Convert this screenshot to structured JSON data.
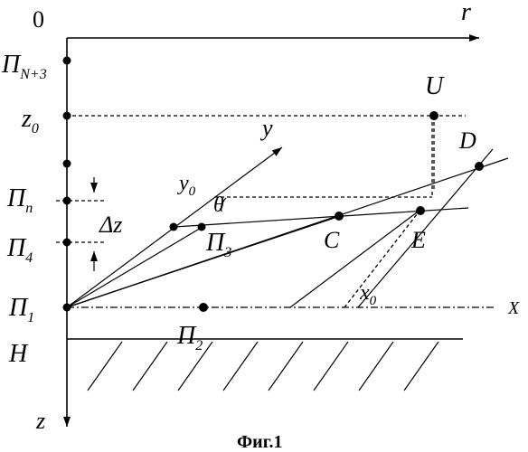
{
  "figure": {
    "caption": "Фиг.1",
    "labels": {
      "origin": "0",
      "r_axis": "r",
      "z_axis": "z",
      "y_axis": "y",
      "x_axis": "X",
      "y0_main": "y",
      "y0_sub": "0",
      "x0_main": "x",
      "x0_sub": "0",
      "theta": "θ",
      "delta_z": "Δz",
      "z0_main": "z",
      "z0_sub": "0",
      "H": "H",
      "U": "U",
      "D": "D",
      "C": "C",
      "E": "E",
      "P": "П",
      "PN3_sub": "N+3",
      "Pn_sub": "n",
      "P4_sub": "4",
      "P1_sub": "1",
      "P2_sub": "2",
      "P3_sub": "3"
    }
  }
}
